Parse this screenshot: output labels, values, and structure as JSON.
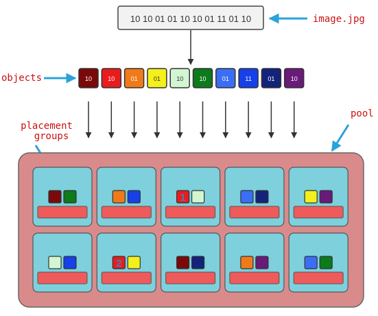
{
  "file": {
    "bits": "10 10 01 01 10 10 01 11 01 10",
    "name": "image.jpg"
  },
  "labels": {
    "objects": "objects",
    "pool": "pool",
    "placement_groups_line1": "placement",
    "placement_groups_line2": "groups"
  },
  "objects": [
    {
      "text": "10",
      "color": "#7a0a0a"
    },
    {
      "text": "10",
      "color": "#e81c1c"
    },
    {
      "text": "01",
      "color": "#f07a1a"
    },
    {
      "text": "01",
      "color": "#f4f01c"
    },
    {
      "text": "10",
      "color": "#d2f5d2"
    },
    {
      "text": "10",
      "color": "#0d7a1c"
    },
    {
      "text": "01",
      "color": "#3a6ef5"
    },
    {
      "text": "11",
      "color": "#1640e8"
    },
    {
      "text": "01",
      "color": "#14237a"
    },
    {
      "text": "10",
      "color": "#6a1a78"
    }
  ],
  "groups": [
    {
      "squares": [
        "#7a0a0a",
        "#0d7a1c"
      ],
      "marker": ""
    },
    {
      "squares": [
        "#f07a1a",
        "#1640e8"
      ],
      "marker": ""
    },
    {
      "squares": [
        "#e81c1c",
        "#d2f5d2"
      ],
      "marker": "1"
    },
    {
      "squares": [
        "#3a6ef5",
        "#14237a"
      ],
      "marker": ""
    },
    {
      "squares": [
        "#f4f01c",
        "#6a1a78"
      ],
      "marker": ""
    },
    {
      "squares": [
        "#d2f5d2",
        "#1640e8"
      ],
      "marker": ""
    },
    {
      "squares": [
        "#e81c1c",
        "#f4f01c"
      ],
      "marker": "2"
    },
    {
      "squares": [
        "#7a0a0a",
        "#14237a"
      ],
      "marker": ""
    },
    {
      "squares": [
        "#f07a1a",
        "#6a1a78"
      ],
      "marker": ""
    },
    {
      "squares": [
        "#3a6ef5",
        "#0d7a1c"
      ],
      "marker": ""
    }
  ],
  "colors": {
    "accent_arrow": "#29a3d9",
    "label_red": "#cc1111",
    "pool_fill": "#d98b8b",
    "group_fill": "#7dd0dc",
    "bar_fill": "#ef5a5a",
    "arrow_dark": "#333333"
  }
}
